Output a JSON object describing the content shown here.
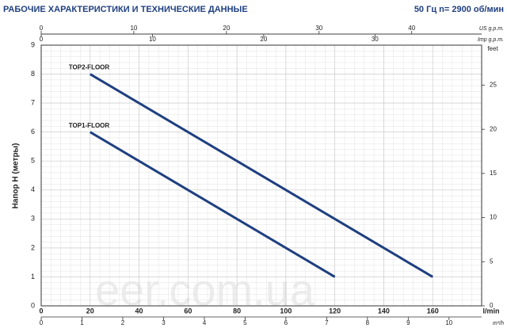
{
  "chart_data": {
    "type": "line",
    "title": "РАБОЧИЕ ХАРАКТЕРИСТИКИ И ТЕХНИЧЕСКИЕ ДАННЫЕ",
    "subtitle": "50 Гц   n= 2900 об/мин",
    "y_label": "Напор H (метры)",
    "x_label": "l/min",
    "watermark": "eer.com.ua",
    "xlim": [
      0,
      180
    ],
    "xticks": [
      0,
      20,
      40,
      60,
      80,
      100,
      120,
      140,
      160
    ],
    "ylim": [
      0,
      9
    ],
    "yticks": [
      0,
      1,
      2,
      3,
      4,
      5,
      6,
      7,
      8,
      9
    ],
    "grid": true,
    "series": [
      {
        "name": "TOP2-FLOOR",
        "color": "#1f3f80",
        "x": [
          20,
          160
        ],
        "values": [
          8,
          1
        ]
      },
      {
        "name": "TOP1-FLOOR",
        "color": "#1f3f80",
        "x": [
          20,
          120
        ],
        "values": [
          6,
          1
        ]
      }
    ],
    "secondary_axes": [
      {
        "label": "US g.p.m.",
        "position": "top",
        "lim": [
          0,
          47.55
        ],
        "ticks": [
          0,
          10,
          20,
          30,
          40
        ]
      },
      {
        "label": "Imp g.p.m.",
        "position": "top2",
        "lim": [
          0,
          39.59
        ],
        "ticks": [
          0,
          10,
          20,
          30
        ]
      },
      {
        "label": "m³/h",
        "position": "bottom2",
        "lim": [
          0,
          10.8
        ],
        "ticks": [
          0,
          1,
          2,
          3,
          4,
          5,
          6,
          7,
          8,
          9,
          10
        ]
      },
      {
        "label": "feet",
        "position": "right",
        "lim": [
          0,
          29.53
        ],
        "ticks": [
          0,
          5,
          10,
          15,
          20,
          25
        ]
      }
    ]
  }
}
